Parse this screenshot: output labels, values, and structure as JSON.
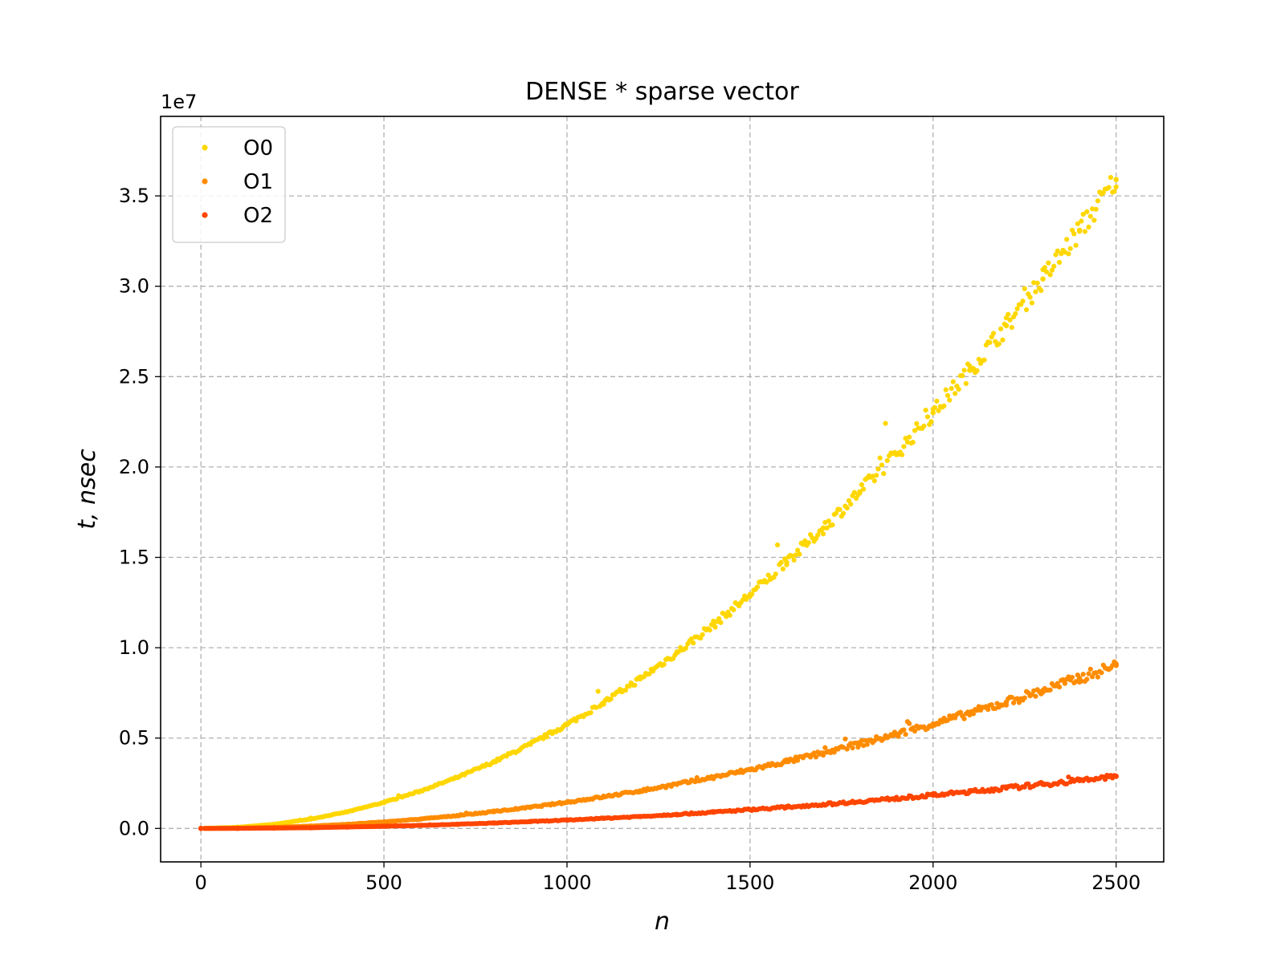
{
  "chart_data": {
    "type": "scatter",
    "title": "DENSE * sparse vector",
    "xlabel": "n",
    "ylabel": "t, nsec",
    "y_offset_label": "1e7",
    "xlim": [
      -110,
      2630
    ],
    "ylim": [
      -1.85,
      39.4
    ],
    "y_scale_factor": 10000000,
    "x_ticks": [
      0,
      500,
      1000,
      1500,
      2000,
      2500
    ],
    "x_tick_labels": [
      "0",
      "500",
      "1000",
      "1500",
      "2000",
      "2500"
    ],
    "y_ticks": [
      0.0,
      5.0,
      10.0,
      15.0,
      20.0,
      25.0,
      30.0,
      35.0
    ],
    "y_tick_labels": [
      "0.0",
      "0.5",
      "1.0",
      "1.5",
      "2.0",
      "2.5",
      "3.0",
      "3.5"
    ],
    "grid": true,
    "legend_position": "top-left",
    "x": [
      0,
      100,
      200,
      300,
      400,
      500,
      600,
      700,
      800,
      900,
      1000,
      1100,
      1200,
      1300,
      1400,
      1500,
      1600,
      1700,
      1800,
      1900,
      2000,
      2100,
      2200,
      2300,
      2400,
      2500
    ],
    "series": [
      {
        "name": "O0",
        "color": "#FFD700",
        "values": [
          0,
          0.06,
          0.23,
          0.52,
          0.92,
          1.44,
          2.07,
          2.82,
          3.68,
          4.66,
          5.75,
          6.96,
          8.28,
          9.72,
          11.27,
          12.94,
          14.72,
          16.62,
          18.63,
          20.75,
          23.0,
          25.35,
          27.82,
          30.4,
          33.1,
          35.9
        ]
      },
      {
        "name": "O1",
        "color": "#FF8C00",
        "values": [
          0,
          0.015,
          0.06,
          0.13,
          0.23,
          0.36,
          0.52,
          0.71,
          0.93,
          1.17,
          1.45,
          1.75,
          2.08,
          2.44,
          2.83,
          3.25,
          3.7,
          4.17,
          4.68,
          5.21,
          5.78,
          6.37,
          6.99,
          7.64,
          8.32,
          9.02
        ]
      },
      {
        "name": "O2",
        "color": "#FF4500",
        "values": [
          0,
          0.005,
          0.02,
          0.04,
          0.08,
          0.12,
          0.17,
          0.23,
          0.3,
          0.38,
          0.46,
          0.56,
          0.66,
          0.78,
          0.9,
          1.04,
          1.18,
          1.33,
          1.49,
          1.66,
          1.84,
          2.03,
          2.23,
          2.44,
          2.65,
          2.88
        ]
      }
    ]
  }
}
